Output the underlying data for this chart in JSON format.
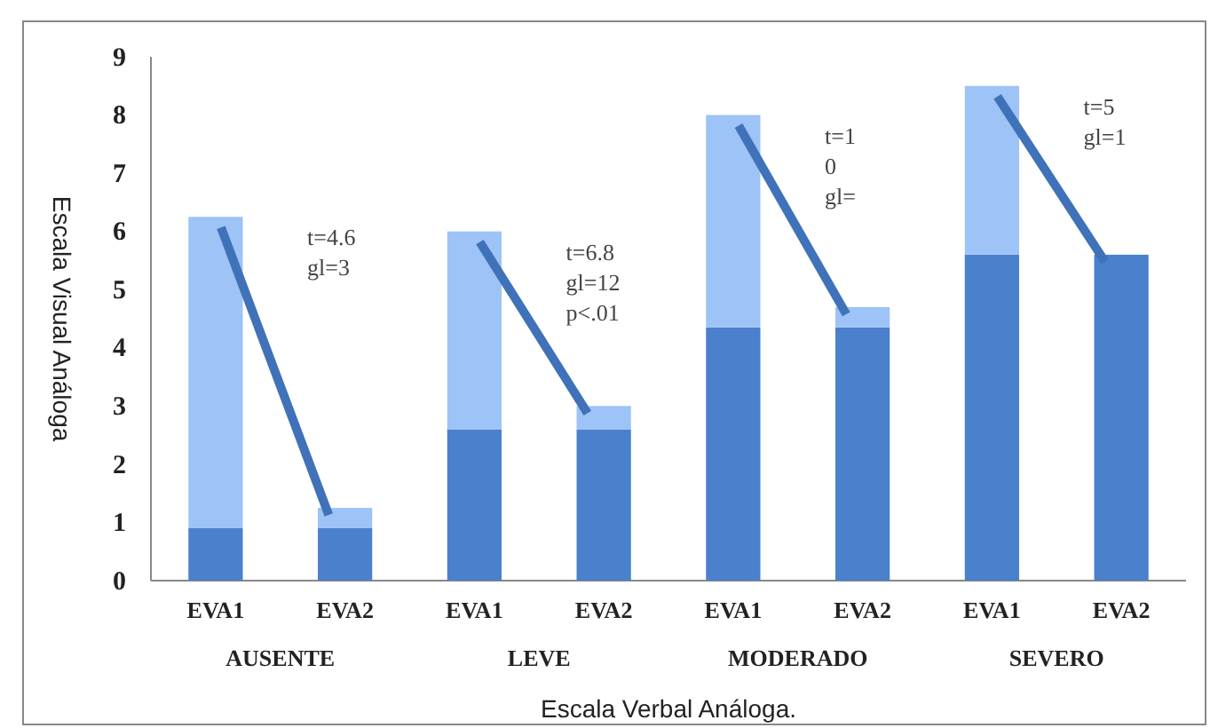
{
  "chart_data": {
    "type": "bar",
    "stacked": true,
    "categories": [
      "EVA1",
      "EVA2",
      "EVA1",
      "EVA2",
      "EVA1",
      "EVA2",
      "EVA1",
      "EVA2"
    ],
    "series": [
      {
        "color": "#4a80cc",
        "values": [
          0.9,
          0.9,
          2.6,
          2.6,
          4.35,
          4.35,
          5.6,
          5.6
        ]
      },
      {
        "color": "#9dc3f7",
        "values": [
          5.35,
          0.35,
          3.4,
          0.4,
          3.65,
          0.35,
          2.9,
          null
        ]
      }
    ],
    "ylim": [
      0,
      9
    ],
    "yticks": [
      0,
      1,
      2,
      3,
      4,
      5,
      6,
      7,
      8,
      9
    ],
    "ylabel": "Escala Visual Análoga",
    "xlabel": "Escala Verbal Análoga.",
    "annotations": [
      "t=4.6\ngl=3",
      "t=6.8\ngl=12\np<.01",
      "t=1\n0\ngl=",
      "t=5\ngl=1",
      "AUSENTE",
      "LEVE",
      "MODERADO",
      "SEVERO"
    ],
    "grid": false
  }
}
